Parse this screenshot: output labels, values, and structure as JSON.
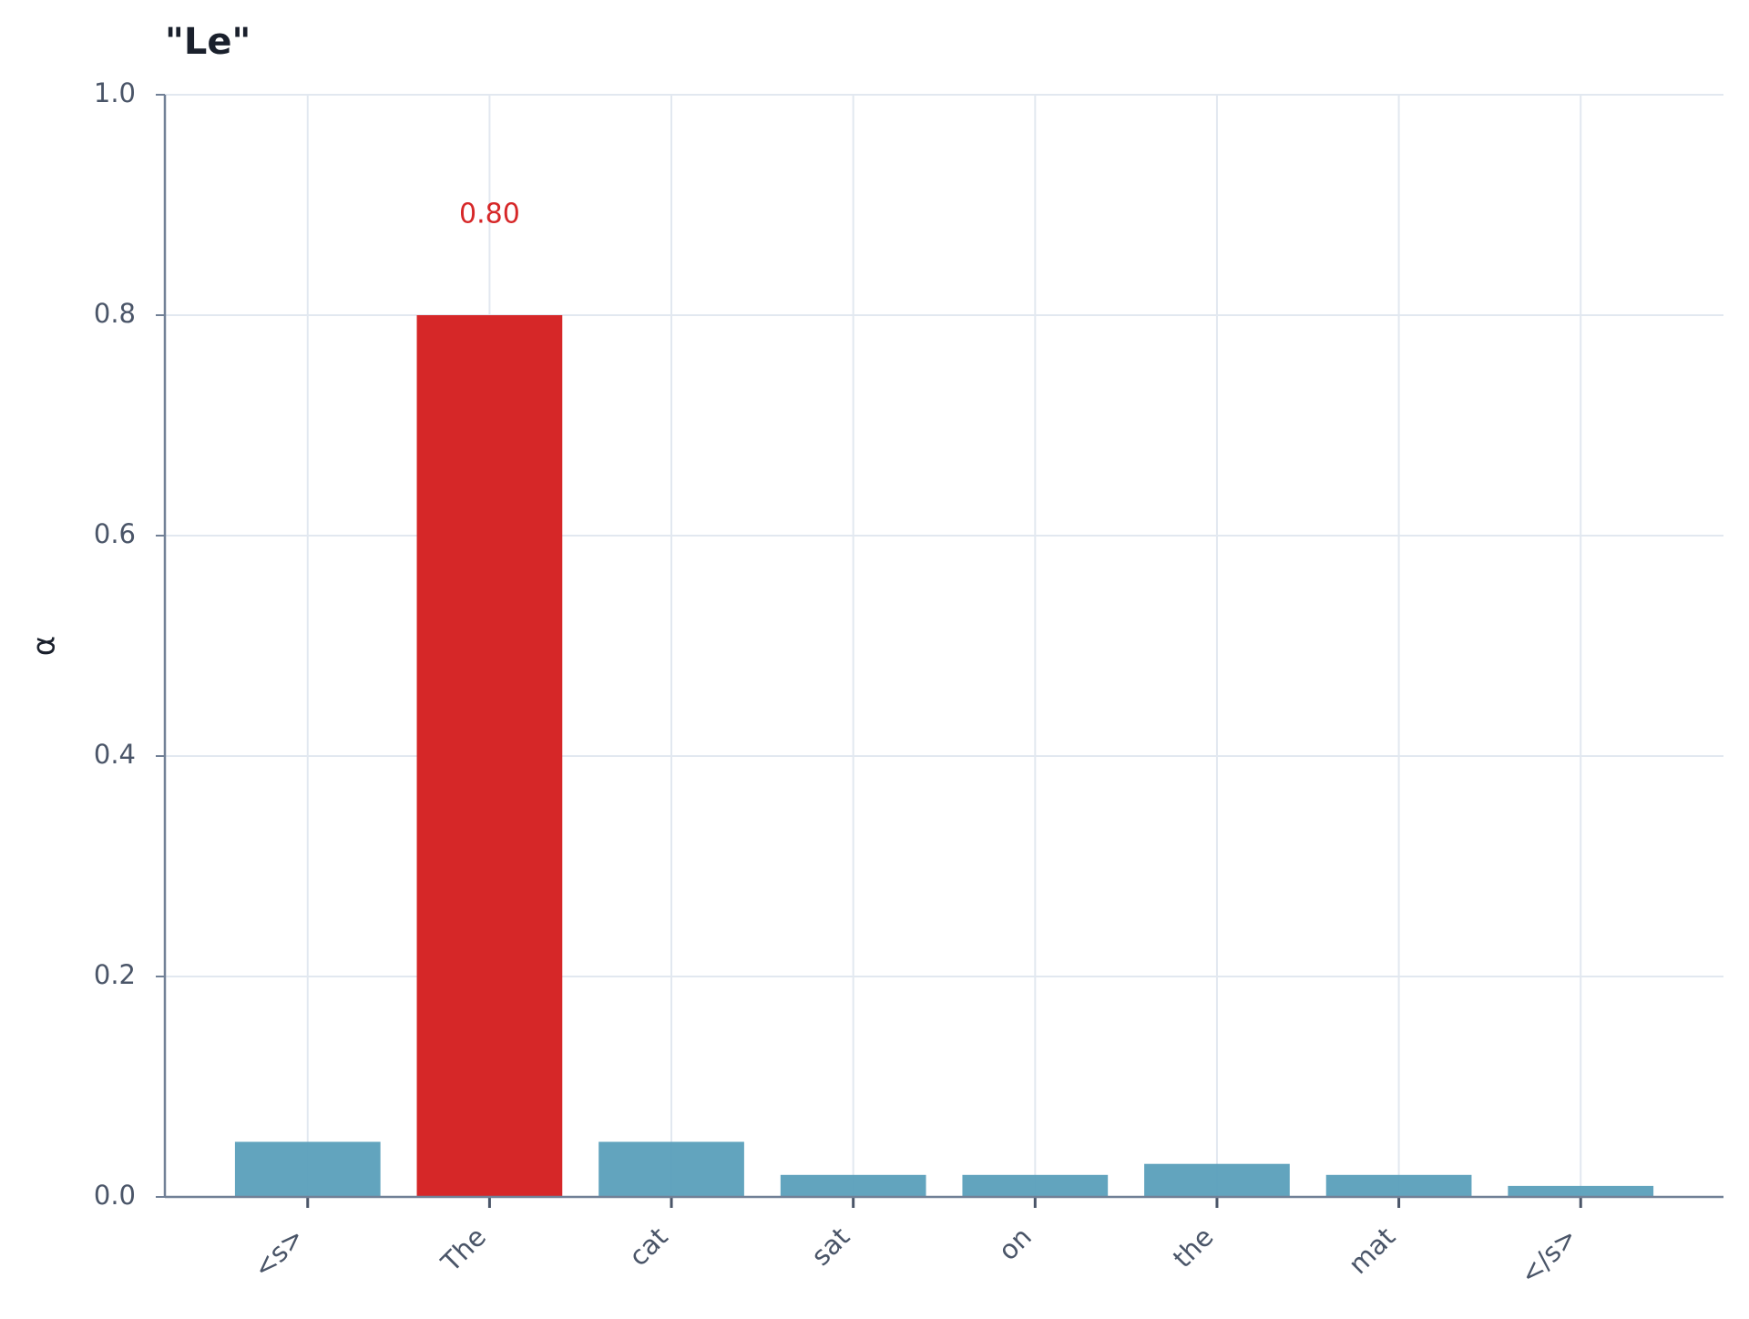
{
  "chart_data": {
    "type": "bar",
    "title": "\"Le\"",
    "y_label": "α",
    "categories": [
      "<s>",
      "The",
      "cat",
      "sat",
      "on",
      "the",
      "mat",
      "</s>"
    ],
    "values": [
      0.05,
      0.8,
      0.05,
      0.02,
      0.02,
      0.03,
      0.02,
      0.01
    ],
    "value_labels": [
      null,
      "0.80",
      null,
      null,
      null,
      null,
      null,
      null
    ],
    "colors": [
      "#5a9fbb",
      "#d62728",
      "#5a9fbb",
      "#5a9fbb",
      "#5a9fbb",
      "#5a9fbb",
      "#5a9fbb",
      "#5a9fbb"
    ],
    "ylim": [
      0,
      1
    ],
    "yticks": [
      {
        "value": 0,
        "label": "0.0"
      },
      0.2,
      0.4,
      0.6,
      0.8,
      {
        "value": 1,
        "label": "1.0"
      }
    ],
    "grid": true
  }
}
